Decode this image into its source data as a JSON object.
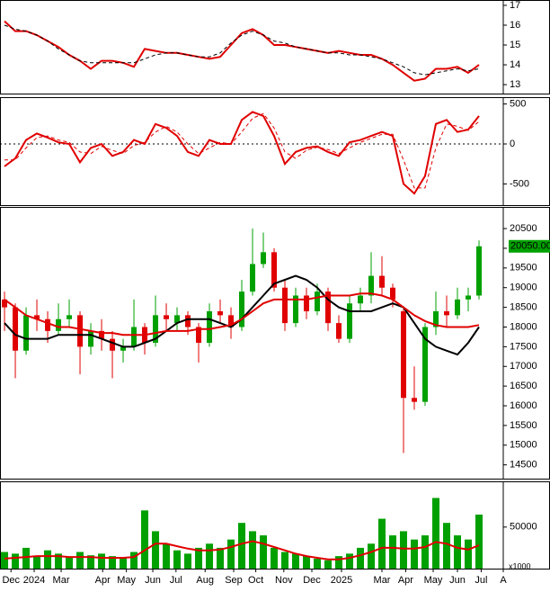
{
  "chart_data": [
    {
      "type": "line",
      "ylim": [
        12.55,
        17.27
      ],
      "yticks": [
        13,
        14,
        15,
        16,
        17
      ],
      "series": [
        {
          "color": "#e00000",
          "style": "solid",
          "values": [
            16.2,
            15.7,
            15.7,
            15.5,
            15.2,
            14.9,
            14.5,
            14.2,
            13.8,
            14.2,
            14.2,
            14.1,
            13.9,
            14.8,
            14.7,
            14.6,
            14.6,
            14.5,
            14.4,
            14.3,
            14.4,
            15.0,
            15.6,
            15.8,
            15.5,
            15.0,
            15.0,
            14.9,
            14.8,
            14.7,
            14.6,
            14.7,
            14.6,
            14.5,
            14.5,
            14.3,
            14.0,
            13.6,
            13.2,
            13.3,
            13.8,
            13.8,
            13.9,
            13.6,
            14.0
          ]
        },
        {
          "color": "#000000",
          "style": "dashed",
          "values": [
            16.0,
            15.8,
            15.7,
            15.5,
            15.2,
            14.8,
            14.5,
            14.2,
            14.1,
            14.1,
            14.1,
            14.1,
            14.1,
            14.3,
            14.5,
            14.6,
            14.6,
            14.5,
            14.4,
            14.4,
            14.6,
            15.1,
            15.5,
            15.7,
            15.5,
            15.2,
            15.1,
            14.9,
            14.8,
            14.7,
            14.6,
            14.6,
            14.5,
            14.5,
            14.4,
            14.3,
            14.1,
            13.9,
            13.6,
            13.5,
            13.6,
            13.7,
            13.8,
            13.7,
            13.8
          ]
        }
      ]
    },
    {
      "type": "line",
      "ylim": [
        -765,
        585
      ],
      "yticks": [
        500,
        0,
        -500
      ],
      "reference_line": 0,
      "series": [
        {
          "color": "#e00000",
          "style": "solid",
          "values": [
            -280,
            -180,
            50,
            130,
            80,
            20,
            0,
            -230,
            -50,
            0,
            -150,
            -100,
            50,
            0,
            250,
            200,
            100,
            -100,
            -150,
            50,
            0,
            0,
            300,
            400,
            350,
            100,
            -250,
            -100,
            -50,
            -30,
            -100,
            -150,
            20,
            50,
            100,
            150,
            100,
            -500,
            -620,
            -400,
            250,
            300,
            150,
            180,
            350
          ]
        },
        {
          "color": "#e00000",
          "style": "dashed",
          "values": [
            -200,
            -200,
            -50,
            80,
            100,
            50,
            20,
            -100,
            -120,
            -30,
            -80,
            -120,
            -20,
            20,
            150,
            220,
            150,
            0,
            -120,
            -50,
            20,
            0,
            150,
            320,
            380,
            200,
            -100,
            -180,
            -80,
            -40,
            -70,
            -120,
            -50,
            20,
            70,
            120,
            120,
            -200,
            -550,
            -550,
            -50,
            250,
            220,
            170,
            280
          ]
        }
      ]
    },
    {
      "type": "candlestick",
      "ylim": [
        14150,
        21050
      ],
      "yticks": [
        14500,
        15000,
        15500,
        16000,
        16500,
        17000,
        17500,
        18000,
        18500,
        19000,
        19500,
        20000,
        20500
      ],
      "up_color": "#00a000",
      "down_color": "#e00000",
      "open": [
        18700,
        18500,
        17400,
        18300,
        18200,
        17900,
        18200,
        18300,
        17500,
        17900,
        17700,
        17400,
        17500,
        18000,
        17600,
        18300,
        18100,
        18300,
        18000,
        17600,
        18400,
        18300,
        18000,
        18900,
        19600,
        19900,
        19000,
        18100,
        18800,
        18400,
        18900,
        18100,
        17700,
        18600,
        18800,
        19300,
        19000,
        18400,
        16200,
        16100,
        18000,
        18400,
        18300,
        18700,
        18800
      ],
      "high": [
        18900,
        18600,
        18500,
        18700,
        18400,
        18600,
        18700,
        18400,
        18100,
        18200,
        17900,
        17700,
        18700,
        18100,
        18800,
        18600,
        18500,
        18400,
        18100,
        18600,
        18700,
        18500,
        19200,
        20500,
        20400,
        20000,
        19200,
        19000,
        19000,
        19100,
        19000,
        18300,
        18800,
        19000,
        19900,
        19800,
        19100,
        18500,
        17000,
        18100,
        18900,
        18800,
        19000,
        19000,
        20200
      ],
      "low": [
        17900,
        16700,
        17300,
        17900,
        17600,
        17800,
        18000,
        16800,
        17300,
        17400,
        16700,
        17100,
        17400,
        17300,
        17500,
        17900,
        17900,
        17800,
        17100,
        17500,
        18100,
        17700,
        17900,
        18800,
        19500,
        18900,
        17900,
        18000,
        18200,
        18300,
        17900,
        17600,
        17600,
        18400,
        18600,
        18800,
        18500,
        14800,
        15900,
        16000,
        17800,
        18000,
        18200,
        18400,
        18700
      ],
      "close": [
        18500,
        17400,
        18300,
        18200,
        17900,
        18200,
        18300,
        17500,
        17900,
        17700,
        17400,
        17500,
        18000,
        17600,
        18300,
        18200,
        18300,
        18000,
        17600,
        18400,
        18300,
        18000,
        18900,
        19600,
        19900,
        19000,
        18100,
        18800,
        18400,
        18900,
        18100,
        17700,
        18600,
        18800,
        19300,
        19000,
        18700,
        16200,
        16100,
        18000,
        18400,
        18300,
        18700,
        18800,
        20050
      ],
      "price_tag": {
        "value": 20050,
        "label": "20050.00"
      },
      "series": [
        {
          "color": "#000000",
          "style": "solid",
          "values": [
            18100,
            17800,
            17700,
            17700,
            17700,
            17800,
            17800,
            17800,
            17800,
            17700,
            17600,
            17500,
            17500,
            17600,
            17700,
            17900,
            18100,
            18200,
            18200,
            18200,
            18100,
            18000,
            18200,
            18500,
            18800,
            19100,
            19200,
            19300,
            19200,
            19000,
            18700,
            18500,
            18400,
            18400,
            18400,
            18500,
            18600,
            18500,
            18100,
            17700,
            17500,
            17400,
            17300,
            17600,
            18000
          ]
        },
        {
          "color": "#e00000",
          "style": "solid",
          "values": [
            18700,
            18500,
            18300,
            18200,
            18100,
            18000,
            18000,
            17950,
            17900,
            17850,
            17850,
            17800,
            17800,
            17800,
            17850,
            17900,
            17900,
            17900,
            17950,
            17950,
            18000,
            18050,
            18200,
            18400,
            18600,
            18700,
            18700,
            18700,
            18700,
            18750,
            18800,
            18800,
            18800,
            18850,
            18850,
            18800,
            18700,
            18500,
            18300,
            18150,
            18050,
            18000,
            18000,
            18000,
            18050
          ]
        }
      ]
    },
    {
      "type": "bar",
      "ylim": [
        0,
        105000
      ],
      "yticks": [
        50000
      ],
      "unit": "x1000",
      "color": "#00a000",
      "values": [
        20000,
        18000,
        25000,
        15000,
        22000,
        18000,
        14000,
        20000,
        16000,
        18000,
        15000,
        14000,
        20000,
        70000,
        45000,
        30000,
        22000,
        18000,
        25000,
        30000,
        25000,
        35000,
        55000,
        45000,
        40000,
        25000,
        20000,
        18000,
        15000,
        12000,
        10000,
        15000,
        18000,
        25000,
        30000,
        60000,
        40000,
        45000,
        35000,
        40000,
        85000,
        55000,
        40000,
        35000,
        65000
      ],
      "series": [
        {
          "color": "#e00000",
          "style": "solid",
          "values": [
            12000,
            13000,
            14000,
            15000,
            15000,
            15000,
            14000,
            14000,
            14000,
            13000,
            13000,
            13000,
            14000,
            22000,
            30000,
            30000,
            27000,
            24000,
            22000,
            22000,
            23000,
            26000,
            30000,
            33000,
            30000,
            26000,
            22000,
            18000,
            15000,
            13000,
            11000,
            11000,
            13000,
            16000,
            20000,
            25000,
            25000,
            24000,
            24000,
            26000,
            32000,
            30000,
            25000,
            23000,
            28000
          ]
        }
      ],
      "xlim": [
        -0.42,
        46.25
      ],
      "xticks": [
        {
          "value": 0.6,
          "label": "Dec"
        },
        {
          "value": 2.75,
          "label": "2024"
        },
        {
          "value": 5.25,
          "label": "Mar"
        },
        {
          "value": 9.1,
          "label": "Apr"
        },
        {
          "value": 11.3,
          "label": "May"
        },
        {
          "value": 13.75,
          "label": "Jun"
        },
        {
          "value": 15.9,
          "label": "Jul"
        },
        {
          "value": 18.6,
          "label": "Aug"
        },
        {
          "value": 21.25,
          "label": "Sep"
        },
        {
          "value": 23.3,
          "label": "Oct"
        },
        {
          "value": 25.9,
          "label": "Nov"
        },
        {
          "value": 28.5,
          "label": "Dec"
        },
        {
          "value": 31.25,
          "label": "2025"
        },
        {
          "value": 35,
          "label": "Mar"
        },
        {
          "value": 37.2,
          "label": "Apr"
        },
        {
          "value": 39.75,
          "label": "May"
        },
        {
          "value": 42,
          "label": "Jun"
        },
        {
          "value": 44.2,
          "label": "Jul"
        },
        {
          "value": 46.25,
          "label": "A"
        }
      ]
    }
  ]
}
